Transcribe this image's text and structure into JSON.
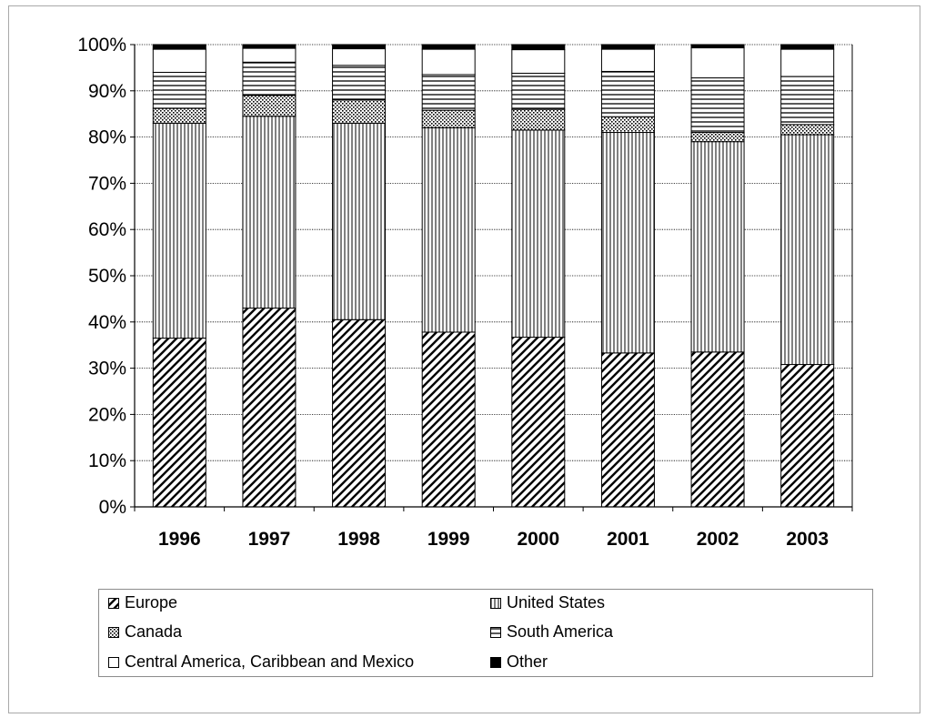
{
  "chart_data": {
    "type": "bar",
    "stacked": true,
    "percent_stacked": true,
    "categories": [
      "1996",
      "1997",
      "1998",
      "1999",
      "2000",
      "2001",
      "2002",
      "2003"
    ],
    "series": [
      {
        "name": "Europe",
        "pattern": "diagonal",
        "values": [
          36.5,
          43.0,
          40.5,
          37.8,
          36.7,
          33.3,
          33.5,
          30.8
        ]
      },
      {
        "name": "United States",
        "pattern": "vertical",
        "values": [
          46.5,
          41.5,
          42.5,
          44.2,
          44.8,
          47.7,
          45.5,
          49.7
        ]
      },
      {
        "name": "Canada",
        "pattern": "dots",
        "values": [
          3.2,
          4.5,
          5.0,
          3.8,
          4.5,
          3.4,
          2.0,
          2.2
        ]
      },
      {
        "name": "South America",
        "pattern": "horizontal",
        "values": [
          7.8,
          7.2,
          7.5,
          7.7,
          7.8,
          9.8,
          11.8,
          10.4
        ]
      },
      {
        "name": "Central America, Caribbean and Mexico",
        "pattern": "white",
        "values": [
          5.0,
          3.0,
          3.6,
          5.5,
          5.1,
          4.8,
          6.5,
          5.9
        ]
      },
      {
        "name": "Other",
        "pattern": "solid",
        "values": [
          1.0,
          0.8,
          0.9,
          1.0,
          1.1,
          1.0,
          0.7,
          1.0
        ]
      }
    ],
    "yticks": [
      "0%",
      "10%",
      "20%",
      "30%",
      "40%",
      "50%",
      "60%",
      "70%",
      "80%",
      "90%",
      "100%"
    ],
    "ylim": [
      0,
      100
    ],
    "grid": true,
    "legend_position": "bottom",
    "title": "",
    "xlabel": "",
    "ylabel": ""
  },
  "colors": {
    "fill": "#ffffff",
    "ink": "#000000",
    "grid": "#000000",
    "frame": "#a9a9a9"
  }
}
